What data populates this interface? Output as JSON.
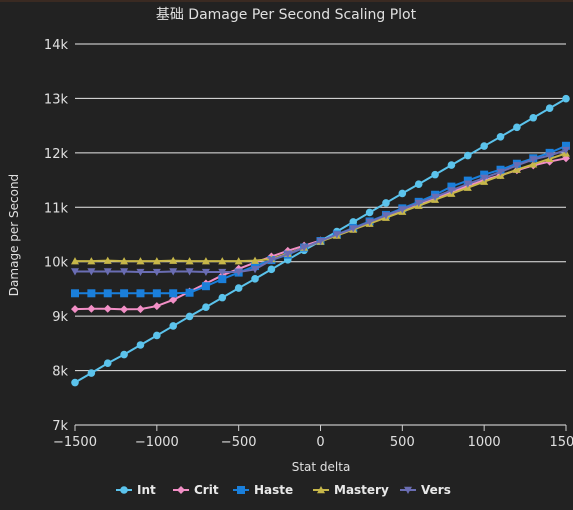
{
  "chart_data": {
    "type": "line",
    "title": "基础 Damage Per Second Scaling Plot",
    "xlabel": "Stat delta",
    "ylabel": "Damage per Second",
    "xlim": [
      -1500,
      1500
    ],
    "ylim": [
      7000,
      14000
    ],
    "x_ticks": [
      -1500,
      -1000,
      -500,
      0,
      500,
      1000,
      1500
    ],
    "x_tick_labels": [
      "−1500",
      "−1000",
      "−500",
      "0",
      "500",
      "1000",
      "1500"
    ],
    "y_ticks": [
      7000,
      8000,
      9000,
      10000,
      11000,
      12000,
      13000,
      14000
    ],
    "y_tick_labels": [
      "7k",
      "8k",
      "9k",
      "10k",
      "11k",
      "12k",
      "13k",
      "14k"
    ],
    "grid": "horizontal",
    "legend_position": "bottom",
    "series": [
      {
        "name": "Int",
        "color": "#5bc3ec",
        "marker": "circle",
        "x": [
          -1500,
          -1400,
          -1300,
          -1200,
          -1100,
          -1000,
          -900,
          -800,
          -700,
          -600,
          -500,
          -400,
          -300,
          -200,
          -100,
          0,
          100,
          200,
          300,
          400,
          500,
          600,
          700,
          800,
          900,
          1000,
          1100,
          1200,
          1300,
          1400,
          1500
        ],
        "values": [
          7780,
          7955,
          8135,
          8295,
          8470,
          8645,
          8820,
          8995,
          9165,
          9340,
          9515,
          9685,
          9860,
          10035,
          10210,
          10380,
          10555,
          10730,
          10905,
          11080,
          11255,
          11425,
          11600,
          11775,
          11950,
          12125,
          12295,
          12470,
          12645,
          12820,
          12995
        ]
      },
      {
        "name": "Crit",
        "color": "#f28fc6",
        "marker": "diamond",
        "x": [
          -1500,
          -1400,
          -1300,
          -1200,
          -1100,
          -1000,
          -900,
          -800,
          -700,
          -600,
          -500,
          -400,
          -300,
          -200,
          -100,
          0,
          100,
          200,
          300,
          400,
          500,
          600,
          700,
          800,
          900,
          1000,
          1100,
          1200,
          1300,
          1400,
          1500
        ],
        "values": [
          9130,
          9135,
          9135,
          9125,
          9130,
          9185,
          9300,
          9450,
          9600,
          9750,
          9870,
          9985,
          10095,
          10200,
          10295,
          10390,
          10490,
          10600,
          10710,
          10830,
          10940,
          11050,
          11170,
          11280,
          11390,
          11500,
          11590,
          11680,
          11770,
          11840,
          11900
        ]
      },
      {
        "name": "Haste",
        "color": "#1a7fdb",
        "marker": "square",
        "x": [
          -1500,
          -1400,
          -1300,
          -1200,
          -1100,
          -1000,
          -900,
          -800,
          -700,
          -600,
          -500,
          -400,
          -300,
          -200,
          -100,
          0,
          100,
          200,
          300,
          400,
          500,
          600,
          700,
          800,
          900,
          1000,
          1100,
          1200,
          1300,
          1400,
          1500
        ],
        "values": [
          9420,
          9420,
          9420,
          9420,
          9420,
          9420,
          9420,
          9430,
          9550,
          9680,
          9800,
          9920,
          10030,
          10130,
          10260,
          10380,
          10500,
          10620,
          10740,
          10860,
          10980,
          11100,
          11230,
          11380,
          11490,
          11600,
          11690,
          11800,
          11900,
          12000,
          12130
        ]
      },
      {
        "name": "Mastery",
        "color": "#c7b74a",
        "marker": "triangle-up",
        "x": [
          -1500,
          -1400,
          -1300,
          -1200,
          -1100,
          -1000,
          -900,
          -800,
          -700,
          -600,
          -500,
          -400,
          -300,
          -200,
          -100,
          0,
          100,
          200,
          300,
          400,
          500,
          600,
          700,
          800,
          900,
          1000,
          1100,
          1200,
          1300,
          1400,
          1500
        ],
        "values": [
          10010,
          10010,
          10020,
          10010,
          10010,
          10010,
          10020,
          10010,
          10010,
          10010,
          10010,
          10020,
          10050,
          10150,
          10260,
          10370,
          10480,
          10590,
          10700,
          10810,
          10920,
          11030,
          11140,
          11250,
          11360,
          11470,
          11580,
          11690,
          11790,
          11890,
          11990
        ]
      },
      {
        "name": "Vers",
        "color": "#6a6db3",
        "marker": "triangle-down",
        "x": [
          -1500,
          -1400,
          -1300,
          -1200,
          -1100,
          -1000,
          -900,
          -800,
          -700,
          -600,
          -500,
          -400,
          -300,
          -200,
          -100,
          0,
          100,
          200,
          300,
          400,
          500,
          600,
          700,
          800,
          900,
          1000,
          1100,
          1200,
          1300,
          1400,
          1500
        ],
        "values": [
          9820,
          9820,
          9820,
          9820,
          9810,
          9810,
          9820,
          9820,
          9810,
          9810,
          9810,
          9860,
          10030,
          10140,
          10260,
          10380,
          10500,
          10610,
          10730,
          10850,
          10960,
          11080,
          11190,
          11310,
          11430,
          11540,
          11650,
          11770,
          11880,
          11950,
          12050
        ]
      }
    ]
  }
}
